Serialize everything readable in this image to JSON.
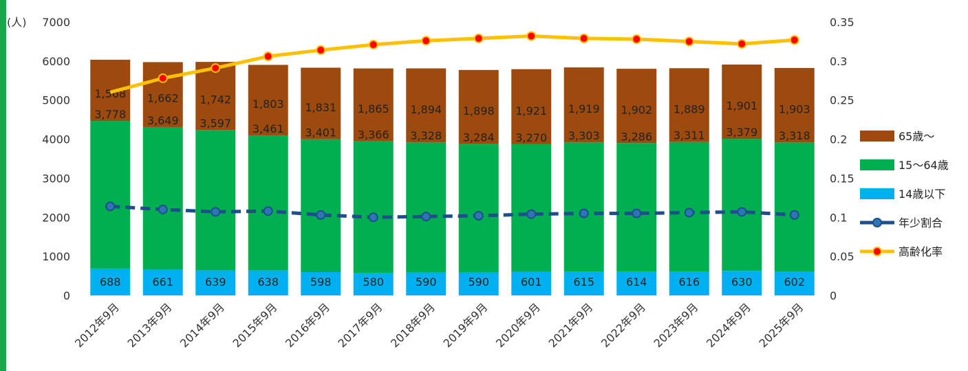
{
  "chart_data": {
    "type": "bar",
    "y_unit_label": "(人)",
    "categories": [
      "2012年9月",
      "2013年9月",
      "2014年9月",
      "2015年9月",
      "2016年9月",
      "2017年9月",
      "2018年9月",
      "2019年9月",
      "2020年9月",
      "2021年9月",
      "2022年9月",
      "2023年9月",
      "2024年9月",
      "2025年9月"
    ],
    "ylim": [
      0,
      7000
    ],
    "y2lim": [
      0,
      0.35
    ],
    "y_ticks": [
      "0",
      "1000",
      "2000",
      "3000",
      "4000",
      "5000",
      "6000",
      "7000"
    ],
    "y2_ticks": [
      "0",
      "0.05",
      "0.1",
      "0.15",
      "0.2",
      "0.25",
      "0.3",
      "0.35"
    ],
    "stacked": true,
    "series": [
      {
        "name": "14歳以下",
        "kind": "bar",
        "color": "#00b0f0",
        "values": [
          688,
          661,
          639,
          638,
          598,
          580,
          590,
          590,
          601,
          615,
          614,
          616,
          630,
          602
        ],
        "labels": [
          "688",
          "661",
          "639",
          "638",
          "598",
          "580",
          "590",
          "590",
          "601",
          "615",
          "614",
          "616",
          "630",
          "602"
        ]
      },
      {
        "name": "15〜64歳",
        "kind": "bar",
        "color": "#00b050",
        "values": [
          3778,
          3649,
          3597,
          3461,
          3401,
          3366,
          3328,
          3284,
          3270,
          3303,
          3286,
          3311,
          3379,
          3318
        ],
        "labels": [
          "3,778",
          "3,649",
          "3,597",
          "3,461",
          "3,401",
          "3,366",
          "3,328",
          "3,284",
          "3,270",
          "3,303",
          "3,286",
          "3,311",
          "3,379",
          "3,318"
        ]
      },
      {
        "name": "65歳〜",
        "kind": "bar",
        "color": "#9c4a0e",
        "values": [
          1568,
          1662,
          1742,
          1803,
          1831,
          1865,
          1894,
          1898,
          1921,
          1919,
          1902,
          1889,
          1901,
          1903
        ],
        "labels": [
          "1,568",
          "1,662",
          "1,742",
          "1,803",
          "1,831",
          "1,865",
          "1,894",
          "1,898",
          "1,921",
          "1,919",
          "1,902",
          "1,889",
          "1,901",
          "1,903"
        ]
      },
      {
        "name": "年少割合",
        "kind": "line",
        "axis": "right",
        "color": "#1f4e8c",
        "marker_color": "#2e75b6",
        "dashed": true,
        "values": [
          0.114,
          0.11,
          0.107,
          0.108,
          0.103,
          0.1,
          0.101,
          0.102,
          0.104,
          0.105,
          0.105,
          0.106,
          0.107,
          0.103
        ]
      },
      {
        "name": "高齢化率",
        "kind": "line",
        "axis": "right",
        "color": "#ffc000",
        "marker_color": "#ff0000",
        "values": [
          0.26,
          0.278,
          0.291,
          0.306,
          0.314,
          0.321,
          0.326,
          0.329,
          0.332,
          0.329,
          0.328,
          0.325,
          0.322,
          0.327
        ]
      }
    ],
    "legend_position": "right",
    "grid": false
  }
}
